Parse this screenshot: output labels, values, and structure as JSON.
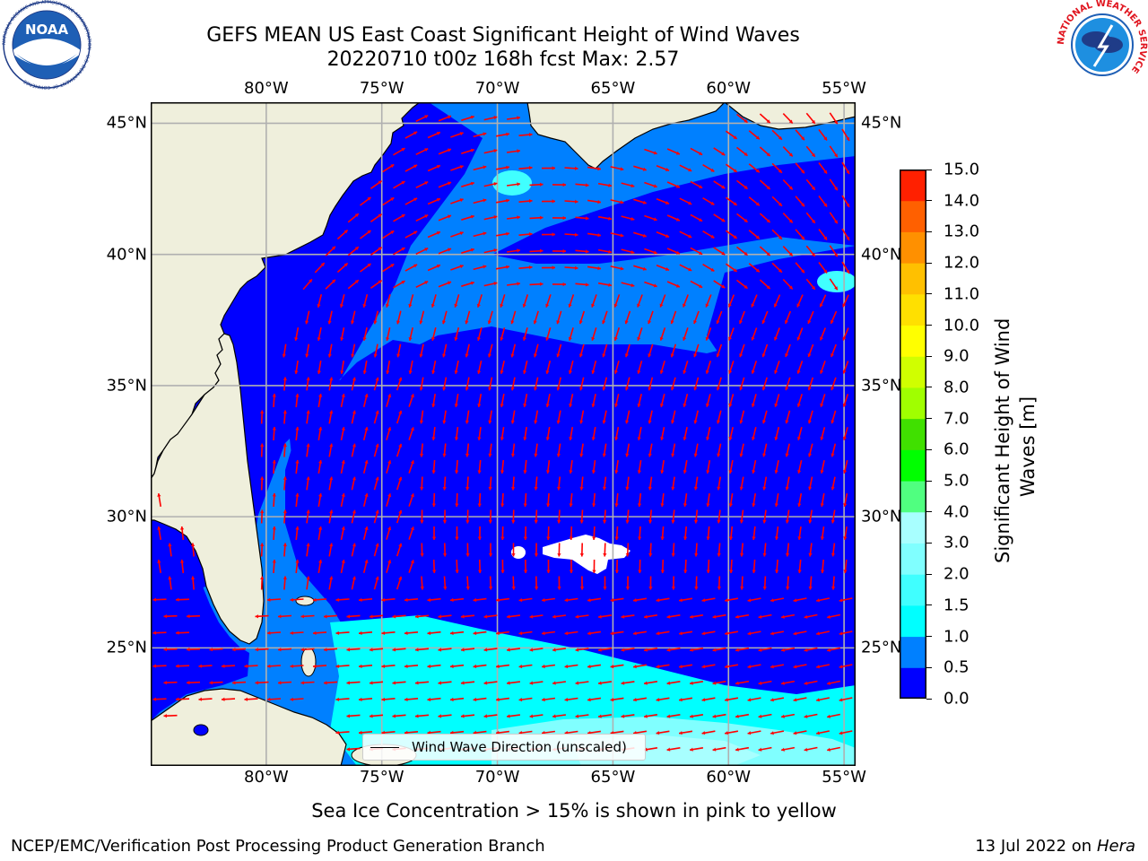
{
  "header": {
    "title_line1": "GEFS MEAN US East Coast Significant Height of Wind Waves",
    "title_line2": "20220710 t00z 168h fcst   Max: 2.57"
  },
  "logos": {
    "left": "NOAA",
    "left_ring_text": "NATIONAL OCEANIC AND ATMOSPHERIC ADMINISTRATION · U.S. DEPARTMENT OF COMMERCE",
    "right_ring_text": "NATIONAL WEATHER SERVICE"
  },
  "map": {
    "lon_labels": [
      "80°W",
      "75°W",
      "70°W",
      "65°W",
      "60°W",
      "55°W"
    ],
    "lat_labels": [
      "45°N",
      "40°N",
      "35°N",
      "30°N",
      "25°N"
    ],
    "lon_range": [
      -85,
      -54.5
    ],
    "lat_range": [
      20.5,
      45.8
    ],
    "grid": true,
    "colors": {
      "land": "#efefdc",
      "coast": "#000000",
      "grid": "#b0b0b0",
      "arrow": "#ff0000"
    },
    "legend": {
      "label": "Wind Wave Direction (unscaled)",
      "placement": "bottom-center"
    }
  },
  "colorbar": {
    "label": "Significant Height of Wind Waves [m]",
    "label_line1": "Significant Height of Wind",
    "label_line2": "Waves [m]",
    "ticks": [
      "0.0",
      "0.5",
      "1.0",
      "1.5",
      "2.0",
      "3.0",
      "4.0",
      "5.0",
      "6.0",
      "7.0",
      "8.0",
      "9.0",
      "10.0",
      "11.0",
      "12.0",
      "13.0",
      "14.0",
      "15.0"
    ],
    "colors": [
      "#0000ff",
      "#0080ff",
      "#00ffff",
      "#40ffff",
      "#80ffff",
      "#a8ffff",
      "#50ff80",
      "#00ff00",
      "#40e000",
      "#a0ff00",
      "#d0ff00",
      "#ffff00",
      "#ffe000",
      "#ffc000",
      "#ff9000",
      "#ff6000",
      "#ff2000"
    ]
  },
  "footer": {
    "note": "Sea Ice Concentration > 15% is shown in pink to yellow",
    "left": "NCEP/EMC/Verification Post Processing Product Generation Branch",
    "right_date": "13 Jul 2022 on ",
    "right_machine": "Hera"
  }
}
